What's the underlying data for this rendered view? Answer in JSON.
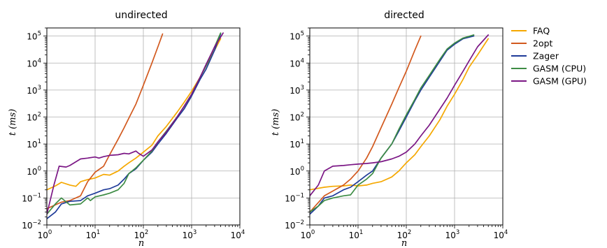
{
  "chart_data": [
    {
      "type": "line",
      "title": "undirected",
      "xlabel": "n",
      "ylabel": "t (ms)",
      "xscale": "log",
      "yscale": "log",
      "xlim": [
        1,
        10000
      ],
      "ylim": [
        0.01,
        200000
      ],
      "grid": true,
      "x_ticks": [
        {
          "base": "10",
          "exp": "0"
        },
        {
          "base": "10",
          "exp": "1"
        },
        {
          "base": "10",
          "exp": "2"
        },
        {
          "base": "10",
          "exp": "3"
        },
        {
          "base": "10",
          "exp": "4"
        }
      ],
      "y_ticks": [
        {
          "base": "10",
          "exp": "−2"
        },
        {
          "base": "10",
          "exp": "−1"
        },
        {
          "base": "10",
          "exp": "0"
        },
        {
          "base": "10",
          "exp": "1"
        },
        {
          "base": "10",
          "exp": "2"
        },
        {
          "base": "10",
          "exp": "3"
        },
        {
          "base": "10",
          "exp": "4"
        },
        {
          "base": "10",
          "exp": "5"
        }
      ],
      "series": [
        {
          "name": "FAQ",
          "points": [
            [
              1,
              0.2
            ],
            [
              1.5,
              0.28
            ],
            [
              2,
              0.38
            ],
            [
              3,
              0.3
            ],
            [
              4,
              0.27
            ],
            [
              5,
              0.4
            ],
            [
              7,
              0.48
            ],
            [
              10,
              0.55
            ],
            [
              15,
              0.75
            ],
            [
              20,
              0.7
            ],
            [
              30,
              1.0
            ],
            [
              40,
              1.5
            ],
            [
              50,
              2.0
            ],
            [
              70,
              3.0
            ],
            [
              100,
              5.0
            ],
            [
              150,
              9.0
            ],
            [
              200,
              20
            ],
            [
              300,
              45
            ],
            [
              500,
              150
            ],
            [
              700,
              350
            ],
            [
              1000,
              900
            ],
            [
              1500,
              3000
            ],
            [
              2000,
              8000
            ],
            [
              3000,
              30000
            ],
            [
              4000,
              80000
            ]
          ]
        },
        {
          "name": "2opt",
          "points": [
            [
              1,
              0.04
            ],
            [
              2,
              0.07
            ],
            [
              3,
              0.08
            ],
            [
              5,
              0.12
            ],
            [
              7,
              0.4
            ],
            [
              10,
              0.9
            ],
            [
              15,
              1.5
            ],
            [
              20,
              4.0
            ],
            [
              30,
              15
            ],
            [
              40,
              40
            ],
            [
              50,
              90
            ],
            [
              70,
              300
            ],
            [
              100,
              1500
            ],
            [
              150,
              10000
            ],
            [
              200,
              40000
            ],
            [
              250,
              120000
            ]
          ]
        },
        {
          "name": "Zager",
          "points": [
            [
              1,
              0.017
            ],
            [
              1.5,
              0.03
            ],
            [
              2,
              0.06
            ],
            [
              3,
              0.075
            ],
            [
              5,
              0.08
            ],
            [
              7,
              0.12
            ],
            [
              10,
              0.15
            ],
            [
              15,
              0.2
            ],
            [
              20,
              0.22
            ],
            [
              30,
              0.3
            ],
            [
              40,
              0.5
            ],
            [
              50,
              0.8
            ],
            [
              70,
              1.2
            ],
            [
              100,
              2.5
            ],
            [
              150,
              5.0
            ],
            [
              200,
              10
            ],
            [
              300,
              25
            ],
            [
              500,
              90
            ],
            [
              700,
              200
            ],
            [
              1000,
              600
            ],
            [
              1500,
              2500
            ],
            [
              2000,
              6000
            ],
            [
              3000,
              30000
            ],
            [
              4000,
              120000
            ]
          ]
        },
        {
          "name": "GASM (CPU)",
          "points": [
            [
              1,
              0.025
            ],
            [
              1.5,
              0.06
            ],
            [
              2,
              0.1
            ],
            [
              3,
              0.055
            ],
            [
              5,
              0.06
            ],
            [
              7,
              0.1
            ],
            [
              8,
              0.08
            ],
            [
              10,
              0.11
            ],
            [
              15,
              0.13
            ],
            [
              20,
              0.15
            ],
            [
              30,
              0.2
            ],
            [
              40,
              0.35
            ],
            [
              50,
              0.8
            ],
            [
              70,
              1.3
            ],
            [
              100,
              2.5
            ],
            [
              150,
              5.5
            ],
            [
              200,
              12
            ],
            [
              300,
              30
            ],
            [
              500,
              100
            ],
            [
              700,
              250
            ],
            [
              1000,
              700
            ],
            [
              1500,
              3000
            ],
            [
              2000,
              8000
            ],
            [
              3000,
              40000
            ],
            [
              4000,
              130000
            ]
          ]
        },
        {
          "name": "GASM (GPU)",
          "points": [
            [
              1,
              0.025
            ],
            [
              1.4,
              0.3
            ],
            [
              1.8,
              1.5
            ],
            [
              2.5,
              1.4
            ],
            [
              3,
              1.6
            ],
            [
              5,
              2.8
            ],
            [
              7,
              3.0
            ],
            [
              10,
              3.3
            ],
            [
              12,
              3.0
            ],
            [
              15,
              3.4
            ],
            [
              20,
              3.8
            ],
            [
              30,
              4.0
            ],
            [
              40,
              4.5
            ],
            [
              50,
              4.3
            ],
            [
              70,
              5.5
            ],
            [
              80,
              4.5
            ],
            [
              100,
              3.5
            ],
            [
              150,
              6
            ],
            [
              200,
              12
            ],
            [
              300,
              28
            ],
            [
              500,
              100
            ],
            [
              700,
              250
            ],
            [
              1000,
              700
            ],
            [
              1500,
              3000
            ],
            [
              2000,
              9000
            ],
            [
              3000,
              40000
            ],
            [
              4500,
              130000
            ]
          ]
        }
      ]
    },
    {
      "type": "line",
      "title": "directed",
      "xlabel": "n",
      "ylabel": "t (ms)",
      "xscale": "log",
      "yscale": "log",
      "xlim": [
        1,
        10000
      ],
      "ylim": [
        0.01,
        200000
      ],
      "grid": true,
      "x_ticks": [
        {
          "base": "10",
          "exp": "0"
        },
        {
          "base": "10",
          "exp": "1"
        },
        {
          "base": "10",
          "exp": "2"
        },
        {
          "base": "10",
          "exp": "3"
        },
        {
          "base": "10",
          "exp": "4"
        }
      ],
      "y_ticks": [
        {
          "base": "10",
          "exp": "−2"
        },
        {
          "base": "10",
          "exp": "−1"
        },
        {
          "base": "10",
          "exp": "0"
        },
        {
          "base": "10",
          "exp": "1"
        },
        {
          "base": "10",
          "exp": "2"
        },
        {
          "base": "10",
          "exp": "3"
        },
        {
          "base": "10",
          "exp": "4"
        },
        {
          "base": "10",
          "exp": "5"
        }
      ],
      "series": [
        {
          "name": "FAQ",
          "points": [
            [
              1,
              0.2
            ],
            [
              2,
              0.25
            ],
            [
              3,
              0.27
            ],
            [
              5,
              0.28
            ],
            [
              7,
              0.3
            ],
            [
              10,
              0.28
            ],
            [
              15,
              0.3
            ],
            [
              20,
              0.35
            ],
            [
              30,
              0.4
            ],
            [
              50,
              0.6
            ],
            [
              70,
              1.0
            ],
            [
              100,
              2.0
            ],
            [
              150,
              4.0
            ],
            [
              200,
              8.0
            ],
            [
              300,
              20
            ],
            [
              500,
              80
            ],
            [
              700,
              250
            ],
            [
              1000,
              700
            ],
            [
              1500,
              2500
            ],
            [
              2000,
              7000
            ],
            [
              3000,
              20000
            ],
            [
              5000,
              80000
            ]
          ]
        },
        {
          "name": "2opt",
          "points": [
            [
              1,
              0.03
            ],
            [
              2,
              0.12
            ],
            [
              3,
              0.18
            ],
            [
              5,
              0.3
            ],
            [
              7,
              0.5
            ],
            [
              10,
              1.0
            ],
            [
              15,
              3.0
            ],
            [
              20,
              8.0
            ],
            [
              30,
              40
            ],
            [
              50,
              300
            ],
            [
              70,
              1200
            ],
            [
              100,
              5000
            ],
            [
              150,
              30000
            ],
            [
              200,
              100000
            ]
          ]
        },
        {
          "name": "Zager",
          "points": [
            [
              1,
              0.025
            ],
            [
              1.5,
              0.05
            ],
            [
              2,
              0.1
            ],
            [
              3,
              0.12
            ],
            [
              5,
              0.2
            ],
            [
              7,
              0.25
            ],
            [
              10,
              0.4
            ],
            [
              15,
              0.7
            ],
            [
              20,
              1.0
            ],
            [
              30,
              3.0
            ],
            [
              50,
              10
            ],
            [
              70,
              30
            ],
            [
              100,
              100
            ],
            [
              150,
              400
            ],
            [
              200,
              1000
            ],
            [
              300,
              3000
            ],
            [
              500,
              12000
            ],
            [
              700,
              30000
            ],
            [
              1000,
              50000
            ],
            [
              1500,
              80000
            ],
            [
              2500,
              100000
            ]
          ]
        },
        {
          "name": "GASM (CPU)",
          "points": [
            [
              1,
              0.03
            ],
            [
              1.5,
              0.05
            ],
            [
              2,
              0.08
            ],
            [
              3,
              0.1
            ],
            [
              5,
              0.12
            ],
            [
              7,
              0.13
            ],
            [
              10,
              0.3
            ],
            [
              15,
              0.5
            ],
            [
              20,
              0.8
            ],
            [
              30,
              3.0
            ],
            [
              50,
              10
            ],
            [
              70,
              35
            ],
            [
              100,
              120
            ],
            [
              150,
              450
            ],
            [
              200,
              1200
            ],
            [
              300,
              3500
            ],
            [
              500,
              14000
            ],
            [
              700,
              33000
            ],
            [
              1000,
              55000
            ],
            [
              1500,
              85000
            ],
            [
              2500,
              110000
            ]
          ]
        },
        {
          "name": "GASM (GPU)",
          "points": [
            [
              1,
              0.12
            ],
            [
              1.5,
              0.3
            ],
            [
              2,
              1.0
            ],
            [
              3,
              1.5
            ],
            [
              5,
              1.6
            ],
            [
              7,
              1.7
            ],
            [
              10,
              1.8
            ],
            [
              15,
              1.9
            ],
            [
              20,
              2.0
            ],
            [
              30,
              2.2
            ],
            [
              50,
              2.8
            ],
            [
              70,
              3.5
            ],
            [
              100,
              5.0
            ],
            [
              150,
              10
            ],
            [
              200,
              20
            ],
            [
              300,
              50
            ],
            [
              500,
              200
            ],
            [
              700,
              500
            ],
            [
              1000,
              1500
            ],
            [
              1500,
              5000
            ],
            [
              2000,
              12000
            ],
            [
              3000,
              40000
            ],
            [
              5000,
              110000
            ]
          ]
        }
      ]
    }
  ],
  "legend": {
    "placement": "right",
    "items": [
      {
        "name": "FAQ",
        "color": "#f5a800"
      },
      {
        "name": "2opt",
        "color": "#d2591e"
      },
      {
        "name": "Zager",
        "color": "#1f3b99"
      },
      {
        "name": "GASM (CPU)",
        "color": "#3e8c45"
      },
      {
        "name": "GASM (GPU)",
        "color": "#7b1785"
      }
    ]
  }
}
